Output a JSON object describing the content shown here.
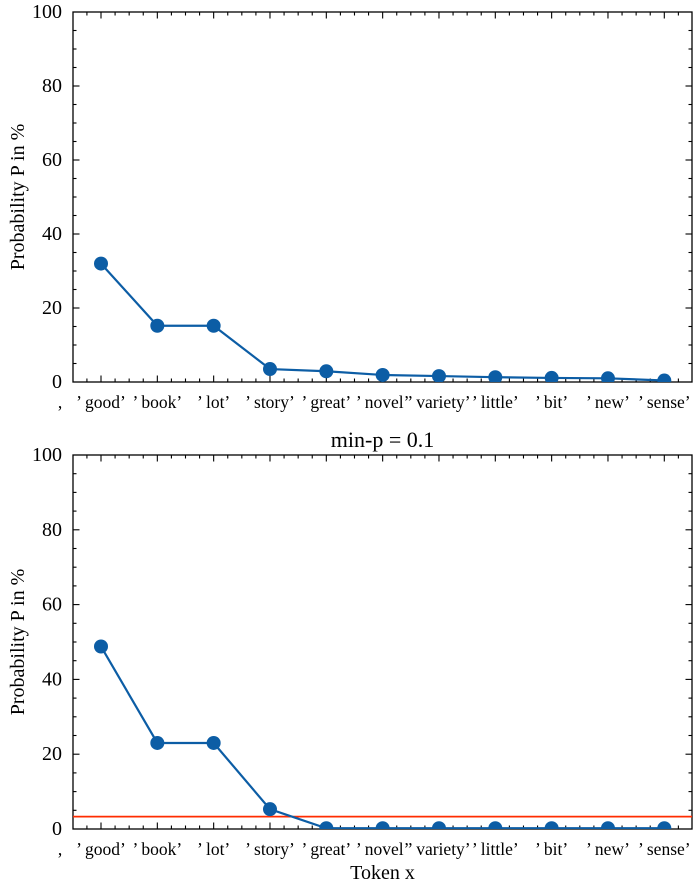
{
  "figure": {
    "background": "#ffffff",
    "description_visible_text_only": true
  },
  "colors": {
    "series_blue": "#0C5DA5",
    "threshold_red": "#FF2C00",
    "axis_black": "#000000"
  },
  "chart_data": [
    {
      "type": "line",
      "title": "",
      "xlabel": "",
      "ylabel": "Probability P in %",
      "ylim": [
        0,
        100
      ],
      "yticks": [
        0,
        20,
        40,
        60,
        80,
        100
      ],
      "grid": false,
      "legend": null,
      "marker": "circle",
      "categories": [
        ",",
        "’ good’",
        "’ book’",
        "’ lot’",
        "’ story’",
        "’ great’",
        "’ novel’",
        "’ variety’",
        "’ little’",
        "’ bit’",
        "’ new’",
        "’ sense’"
      ],
      "values": [
        null,
        32,
        15.2,
        15.2,
        3.5,
        2.9,
        1.9,
        1.6,
        1.3,
        1.1,
        1.0,
        0.4
      ]
    },
    {
      "type": "line",
      "title": "min-p = 0.1",
      "xlabel": "Token x",
      "ylabel": "Probability P in %",
      "ylim": [
        0,
        100
      ],
      "yticks": [
        0,
        20,
        40,
        60,
        80,
        100
      ],
      "grid": false,
      "legend": null,
      "marker": "circle",
      "categories": [
        ",",
        "’ good’",
        "’ book’",
        "’ lot’",
        "’ story’",
        "’ great’",
        "’ novel’",
        "’ variety’",
        "’ little’",
        "’ bit’",
        "’ new’",
        "’ sense’"
      ],
      "values": [
        null,
        48.8,
        23,
        23,
        5.3,
        0.2,
        0.2,
        0.2,
        0.2,
        0.2,
        0.2,
        0.2
      ],
      "threshold_line": {
        "value": 3.3,
        "color": "#FF2C00"
      }
    }
  ]
}
